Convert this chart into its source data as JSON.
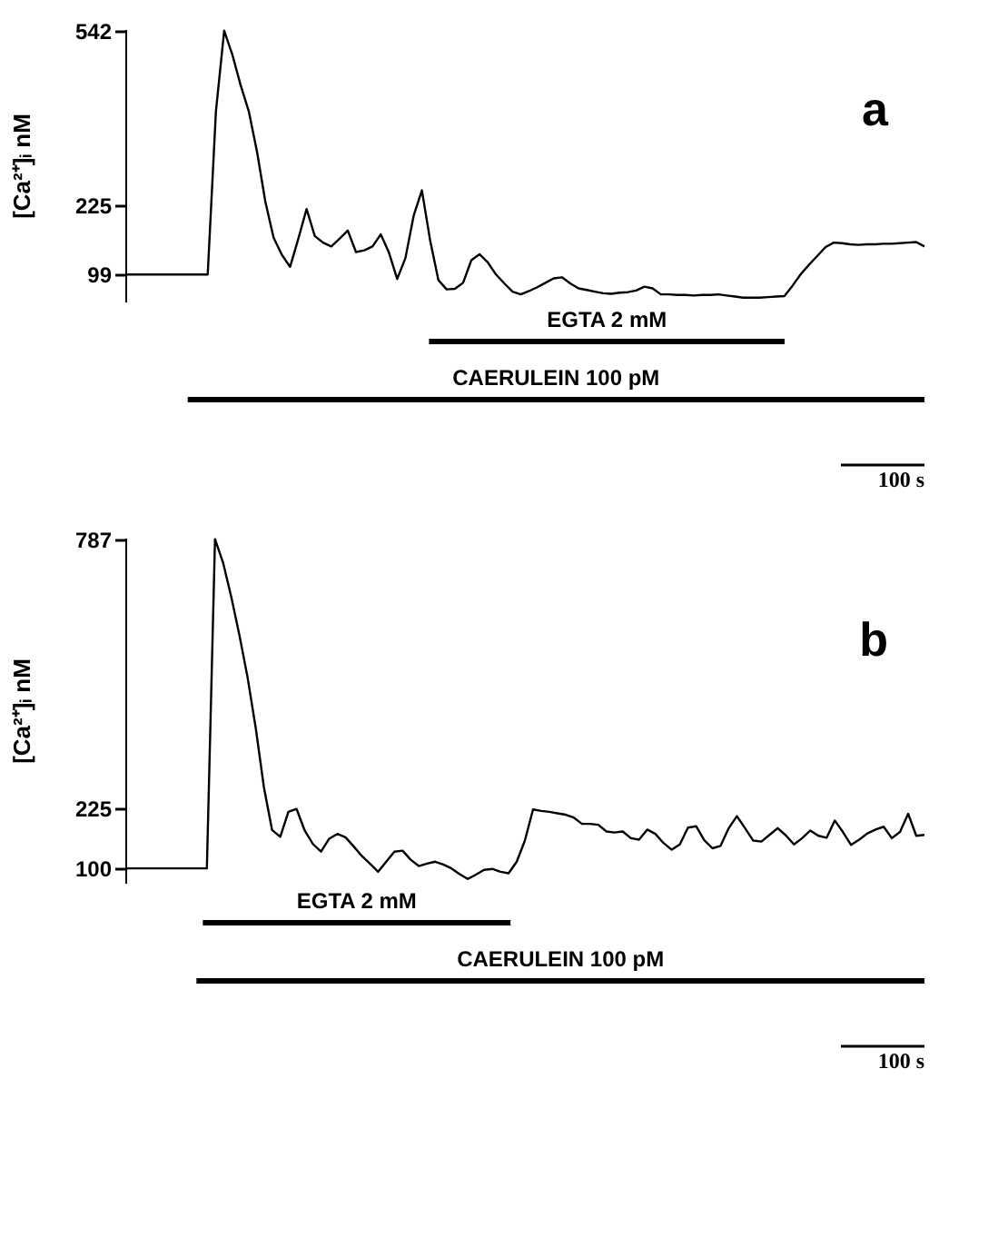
{
  "chart_data": [
    {
      "type": "line",
      "ylabel": "[Ca²⁺]ᵢ nM",
      "tick_labels": "y",
      "grid": false,
      "marker": "none",
      "line_style": "solid",
      "ylim": [
        50,
        545
      ],
      "yticks": [
        99,
        225,
        542
      ],
      "categories": [
        null,
        null,
        null,
        null,
        null,
        null,
        null,
        null,
        null,
        null,
        null,
        null,
        null,
        null,
        null,
        null,
        null,
        null,
        null,
        null,
        null,
        null,
        null,
        null,
        null,
        null,
        null,
        null,
        null,
        null,
        null,
        null,
        null,
        null,
        null,
        null,
        null,
        null,
        null,
        null,
        null,
        null,
        null,
        null,
        null,
        null,
        null,
        null,
        null,
        null,
        null,
        null,
        null,
        null,
        null,
        null,
        null,
        null,
        null,
        null,
        null,
        null,
        null,
        null,
        null,
        null,
        null,
        null,
        null,
        null,
        null,
        null,
        null,
        null,
        null,
        null,
        null,
        null,
        null,
        null,
        null,
        null,
        null,
        null,
        null,
        null,
        null,
        null,
        null,
        null,
        null,
        null,
        null,
        null,
        null,
        null,
        null,
        null
      ],
      "series": [
        {
          "color": "#000000",
          "values": [
            99,
            99,
            99,
            99,
            99,
            99,
            99,
            99,
            99,
            99,
            99,
            396,
            542,
            498,
            443,
            395,
            321,
            231,
            166,
            135,
            113,
            164,
            218,
            169,
            157,
            150,
            164,
            179,
            140,
            143,
            150,
            172,
            139,
            91,
            129,
            206,
            252,
            161,
            89,
            72,
            73,
            84,
            125,
            136,
            121,
            99,
            83,
            68,
            63,
            69,
            76,
            84,
            92,
            94,
            83,
            74,
            71,
            68,
            65,
            64,
            66,
            67,
            70,
            77,
            74,
            63,
            63,
            62,
            62,
            61,
            62,
            62,
            63,
            61,
            59,
            57,
            57,
            57,
            58,
            59,
            60,
            79,
            100,
            117,
            133,
            149,
            157,
            156,
            154,
            153,
            154,
            154,
            155,
            155,
            156,
            157,
            158,
            150
          ]
        }
      ],
      "annotations": [
        "EGTA 2 mM",
        "CAERULEIN 100 pM",
        "a",
        "100 s"
      ]
    },
    {
      "type": "line",
      "ylabel": "[Ca²⁺]ᵢ nM",
      "tick_labels": "y",
      "grid": false,
      "marker": "none",
      "line_style": "solid",
      "ylim": [
        70,
        790
      ],
      "yticks": [
        100,
        225,
        787
      ],
      "categories": [
        null,
        null,
        null,
        null,
        null,
        null,
        null,
        null,
        null,
        null,
        null,
        null,
        null,
        null,
        null,
        null,
        null,
        null,
        null,
        null,
        null,
        null,
        null,
        null,
        null,
        null,
        null,
        null,
        null,
        null,
        null,
        null,
        null,
        null,
        null,
        null,
        null,
        null,
        null,
        null,
        null,
        null,
        null,
        null,
        null,
        null,
        null,
        null,
        null,
        null,
        null,
        null,
        null,
        null,
        null,
        null,
        null,
        null,
        null,
        null,
        null,
        null,
        null,
        null,
        null,
        null,
        null,
        null,
        null,
        null,
        null,
        null,
        null,
        null,
        null,
        null,
        null,
        null,
        null,
        null,
        null,
        null,
        null,
        null,
        null,
        null,
        null,
        null,
        null,
        null,
        null,
        null,
        null,
        null,
        null,
        null,
        null,
        null,
        null
      ],
      "series": [
        {
          "color": "#000000",
          "values": [
            100,
            100,
            100,
            100,
            100,
            100,
            100,
            100,
            100,
            100,
            100,
            787,
            737,
            666,
            586,
            498,
            392,
            269,
            180,
            166,
            218,
            224,
            179,
            151,
            135,
            162,
            172,
            165,
            146,
            126,
            110,
            93,
            114,
            135,
            137,
            118,
            105,
            110,
            114,
            108,
            100,
            88,
            78,
            87,
            97,
            99,
            93,
            90,
            114,
            158,
            223,
            220,
            218,
            215,
            212,
            206,
            193,
            193,
            191,
            177,
            175,
            177,
            163,
            160,
            181,
            172,
            153,
            139,
            150,
            185,
            188,
            159,
            142,
            147,
            184,
            209,
            184,
            158,
            156,
            170,
            184,
            169,
            150,
            163,
            179,
            168,
            164,
            200,
            176,
            149,
            160,
            173,
            181,
            187,
            163,
            176,
            214,
            168,
            170
          ]
        }
      ],
      "annotations": [
        "EGTA 2 mM",
        "CAERULEIN 100 pM",
        "b",
        "100 s"
      ]
    }
  ]
}
